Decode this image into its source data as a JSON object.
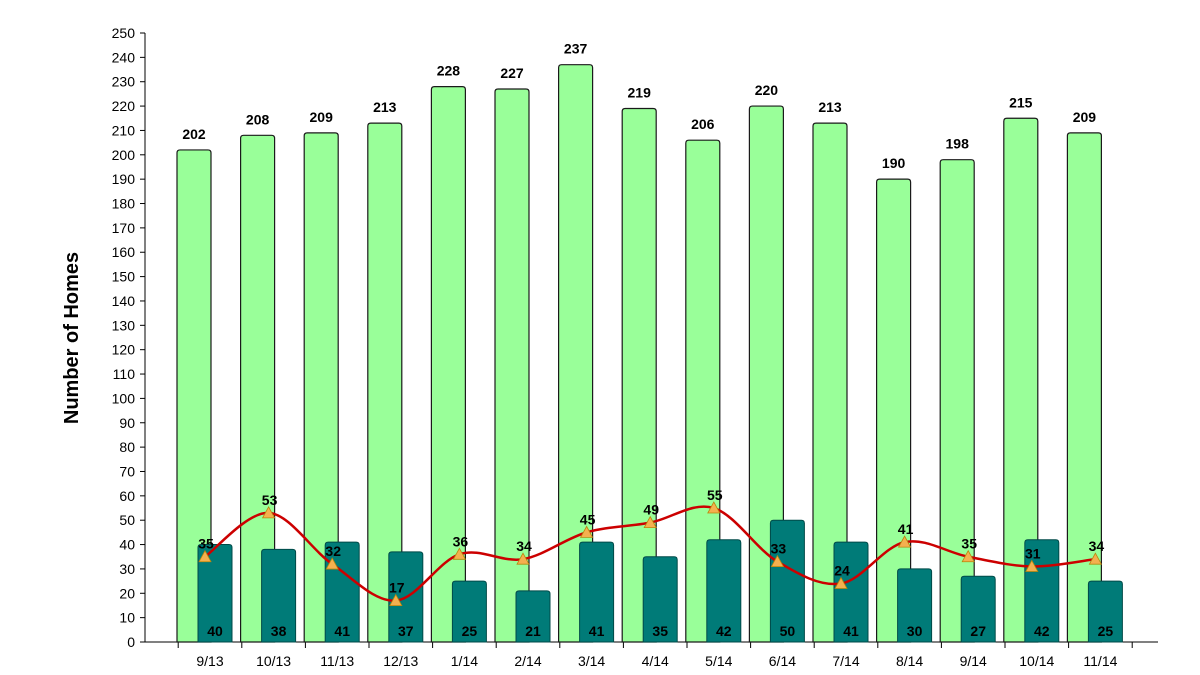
{
  "chart_data": {
    "type": "bar",
    "ylabel": "Number of Homes",
    "xlabel": "",
    "ylim": [
      0,
      250
    ],
    "ytick_step": 10,
    "categories": [
      "9/13",
      "10/13",
      "11/13",
      "12/13",
      "1/14",
      "2/14",
      "3/14",
      "4/14",
      "5/14",
      "6/14",
      "7/14",
      "8/14",
      "9/14",
      "10/14",
      "11/14"
    ],
    "series": [
      {
        "type": "bar",
        "color": "#99ff99",
        "values": [
          202,
          208,
          209,
          213,
          228,
          227,
          237,
          219,
          206,
          220,
          213,
          190,
          198,
          215,
          209
        ]
      },
      {
        "type": "bar",
        "color": "#007b78",
        "values": [
          40,
          38,
          41,
          37,
          25,
          21,
          41,
          35,
          42,
          50,
          41,
          30,
          27,
          42,
          25
        ]
      },
      {
        "type": "line",
        "color": "#cc0000",
        "marker_color": "#f4b04f",
        "values": [
          35,
          53,
          32,
          17,
          36,
          34,
          45,
          49,
          55,
          33,
          24,
          41,
          35,
          31,
          34
        ]
      }
    ]
  }
}
